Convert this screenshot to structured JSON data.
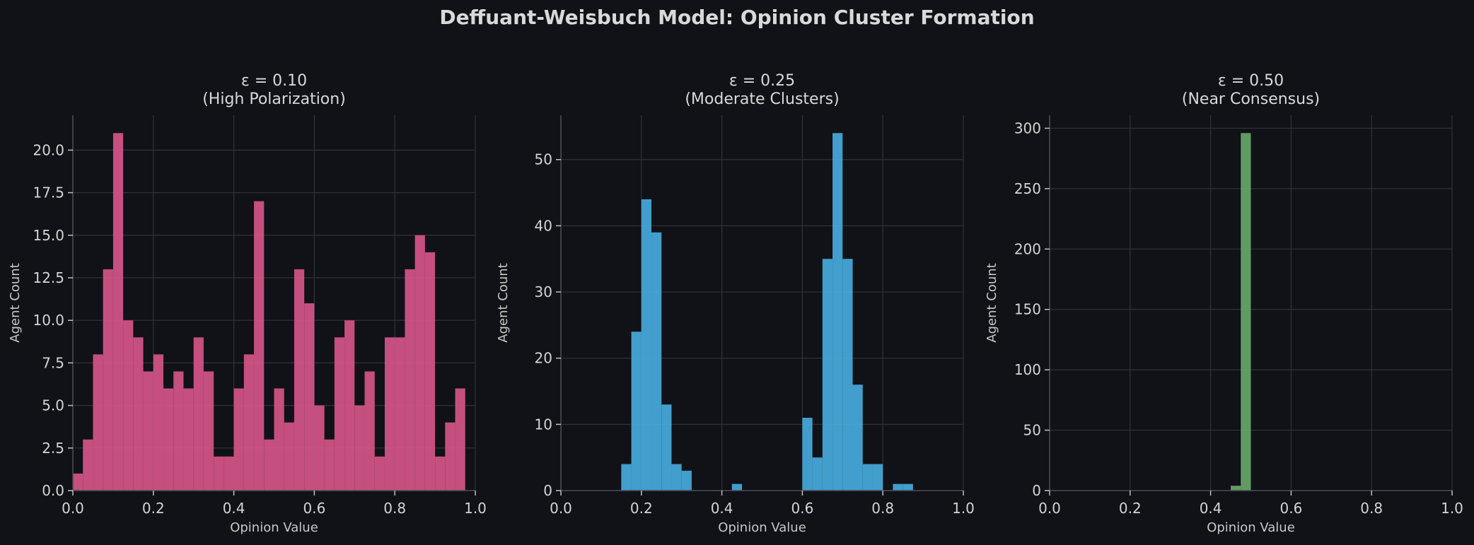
{
  "suptitle": "Deffuant-Weisbuch Model: Opinion Cluster Formation",
  "chart_data": [
    {
      "type": "bar",
      "title_line1": "ε = 0.10",
      "title_line2": "(High Polarization)",
      "xlabel": "Opinion Value",
      "ylabel": "Agent Count",
      "color": "#d9578a",
      "xlim": [
        0,
        1
      ],
      "ylim": [
        0,
        22.05
      ],
      "xticks": [
        "0.0",
        "0.2",
        "0.4",
        "0.6",
        "0.8",
        "1.0"
      ],
      "yticks": [
        "0.0",
        "2.5",
        "5.0",
        "7.5",
        "10.0",
        "12.5",
        "15.0",
        "17.5",
        "20.0"
      ],
      "bin_start": 0.0,
      "bin_width": 0.025,
      "values": [
        1,
        3,
        8,
        13,
        21,
        10,
        9,
        7,
        8,
        6,
        7,
        6,
        9,
        7,
        2,
        2,
        6,
        8,
        17,
        3,
        6,
        4,
        13,
        11,
        5,
        3,
        9,
        10,
        5,
        7,
        2,
        9,
        9,
        13,
        15,
        14,
        2,
        4,
        6
      ]
    },
    {
      "type": "bar",
      "title_line1": "ε = 0.25",
      "title_line2": "(Moderate Clusters)",
      "xlabel": "Opinion Value",
      "ylabel": "Agent Count",
      "color": "#48aee0",
      "xlim": [
        0,
        1
      ],
      "ylim": [
        0,
        56.7
      ],
      "xticks": [
        "0.0",
        "0.2",
        "0.4",
        "0.6",
        "0.8",
        "1.0"
      ],
      "yticks": [
        "0",
        "10",
        "20",
        "30",
        "40",
        "50"
      ],
      "bin_start": 0.15,
      "bin_width": 0.025,
      "values": [
        4,
        24,
        44,
        39,
        13,
        4,
        3,
        0,
        0,
        0,
        0,
        1,
        0,
        0,
        0,
        0,
        0,
        0,
        11,
        5,
        35,
        54,
        35,
        16,
        4,
        4,
        0,
        1,
        1
      ]
    },
    {
      "type": "bar",
      "title_line1": "ε = 0.50",
      "title_line2": "(Near Consensus)",
      "xlabel": "Opinion Value",
      "ylabel": "Agent Count",
      "color": "#6aab6a",
      "xlim": [
        0,
        1
      ],
      "ylim": [
        0,
        310.8
      ],
      "xticks": [
        "0.0",
        "0.2",
        "0.4",
        "0.6",
        "0.8",
        "1.0"
      ],
      "yticks": [
        "0",
        "50",
        "100",
        "150",
        "200",
        "250",
        "300"
      ],
      "bin_start": 0.45,
      "bin_width": 0.025,
      "values": [
        4,
        296
      ]
    }
  ]
}
